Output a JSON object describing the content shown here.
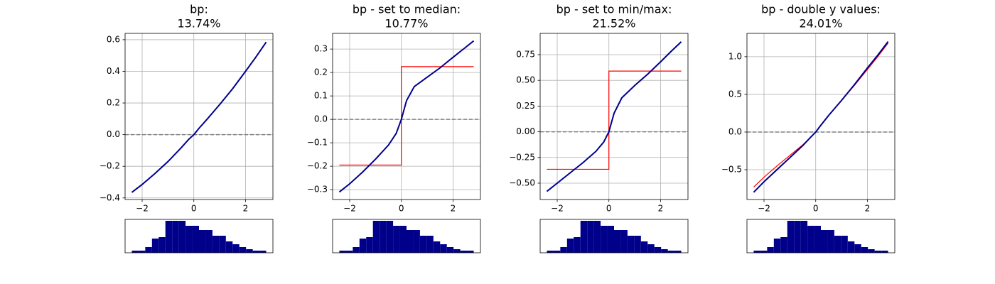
{
  "chart_data": [
    {
      "type": "line",
      "title": [
        "bp:",
        "13.74%"
      ],
      "x": [
        -2.4,
        -2,
        -1.5,
        -1,
        -0.5,
        -0.2,
        0,
        0,
        0.2,
        0.5,
        1,
        1.5,
        2,
        2.4,
        2.8
      ],
      "series": [
        {
          "color": "#00008b",
          "values": [
            -0.365,
            -0.315,
            -0.245,
            -0.17,
            -0.085,
            -0.03,
            0,
            0,
            0.04,
            0.095,
            0.19,
            0.29,
            0.4,
            0.49,
            0.585
          ]
        }
      ],
      "xlim": [
        -2.66,
        3.06
      ],
      "xticks": [
        {
          "value": -2,
          "label": "−2"
        },
        0,
        2
      ],
      "ylim": [
        -0.41,
        0.64
      ],
      "yticks": [
        {
          "value": -0.4,
          "label": "−0.4"
        },
        {
          "value": -0.2,
          "label": "−0.2"
        },
        {
          "value": 0,
          "label": "0.0"
        },
        0.2,
        0.4,
        0.6
      ],
      "grid": true,
      "hline": {
        "y": 0,
        "color": "gray",
        "style": "dashed"
      }
    },
    {
      "type": "line",
      "title": [
        "bp - set to median:",
        "10.77%"
      ],
      "x": [
        -2.4,
        -2,
        -1.5,
        -1,
        -0.5,
        -0.2,
        0,
        0,
        0.2,
        0.5,
        1,
        1.5,
        2,
        2.4,
        2.8
      ],
      "series": [
        {
          "color": "#00008b",
          "values": [
            -0.31,
            -0.275,
            -0.225,
            -0.17,
            -0.11,
            -0.06,
            0,
            0,
            0.08,
            0.14,
            0.18,
            0.22,
            0.265,
            0.3,
            0.335
          ]
        },
        {
          "color": "red",
          "values": [
            -0.195,
            -0.195,
            -0.195,
            -0.195,
            -0.195,
            -0.195,
            -0.195,
            0.225,
            0.225,
            0.225,
            0.225,
            0.225,
            0.225,
            0.225,
            0.225
          ]
        }
      ],
      "xlim": [
        -2.66,
        3.06
      ],
      "xticks": [
        {
          "value": -2,
          "label": "−2"
        },
        0,
        2
      ],
      "ylim": [
        -0.342,
        0.367
      ],
      "yticks": [
        {
          "value": -0.3,
          "label": "−0.3"
        },
        {
          "value": -0.2,
          "label": "−0.2"
        },
        {
          "value": -0.1,
          "label": "−0.1"
        },
        {
          "value": 0,
          "label": "0.0"
        },
        0.1,
        0.2,
        0.3
      ],
      "grid": true,
      "hline": {
        "y": 0,
        "color": "gray",
        "style": "dashed"
      }
    },
    {
      "type": "line",
      "title": [
        "bp - set to min/max:",
        "21.52%"
      ],
      "x": [
        -2.4,
        -2,
        -1.5,
        -1,
        -0.5,
        -0.2,
        0,
        0,
        0.2,
        0.5,
        1,
        1.5,
        2,
        2.4,
        2.8
      ],
      "series": [
        {
          "color": "#00008b",
          "values": [
            -0.58,
            -0.5,
            -0.4,
            -0.3,
            -0.19,
            -0.1,
            0,
            0,
            0.18,
            0.33,
            0.45,
            0.56,
            0.68,
            0.78,
            0.875
          ]
        },
        {
          "color": "red",
          "values": [
            -0.365,
            -0.365,
            -0.365,
            -0.365,
            -0.365,
            -0.365,
            -0.365,
            0.59,
            0.59,
            0.59,
            0.59,
            0.59,
            0.59,
            0.59,
            0.59
          ]
        }
      ],
      "xlim": [
        -2.66,
        3.06
      ],
      "xticks": [
        {
          "value": -2,
          "label": "−2"
        },
        0,
        2
      ],
      "ylim": [
        -0.659,
        0.957
      ],
      "yticks": [
        {
          "value": -0.5,
          "label": "−0.50"
        },
        {
          "value": -0.25,
          "label": "−0.25"
        },
        {
          "value": 0,
          "label": "0.00"
        },
        0.25,
        {
          "value": 0.5,
          "label": "0.50"
        },
        0.75
      ],
      "grid": true,
      "hline": {
        "y": 0,
        "color": "gray",
        "style": "dashed"
      }
    },
    {
      "type": "line",
      "title": [
        "bp - double y values:",
        "24.01%"
      ],
      "x": [
        -2.4,
        -2,
        -1.5,
        -1,
        -0.5,
        -0.2,
        0,
        0,
        0.2,
        0.5,
        1,
        1.5,
        2,
        2.4,
        2.8
      ],
      "series": [
        {
          "color": "#00008b",
          "values": [
            -0.8,
            -0.66,
            -0.5,
            -0.34,
            -0.18,
            -0.07,
            0,
            0,
            0.09,
            0.22,
            0.42,
            0.63,
            0.85,
            1.02,
            1.2
          ]
        },
        {
          "color": "red",
          "values": [
            -0.73,
            -0.6,
            -0.45,
            -0.31,
            -0.17,
            -0.07,
            0,
            0,
            0.09,
            0.22,
            0.42,
            0.62,
            0.83,
            1.0,
            1.18
          ]
        }
      ],
      "xlim": [
        -2.66,
        3.06
      ],
      "xticks": [
        {
          "value": -2,
          "label": "−2"
        },
        0,
        2
      ],
      "ylim": [
        -0.896,
        1.31
      ],
      "yticks": [
        {
          "value": -0.5,
          "label": "−0.5"
        },
        {
          "value": 0,
          "label": "0.0"
        },
        0.5,
        {
          "value": 1,
          "label": "1.0"
        }
      ],
      "grid": true,
      "hline": {
        "y": 0,
        "color": "gray",
        "style": "dashed"
      }
    },
    {
      "type": "histogram",
      "color": "#00008b",
      "xlim": [
        -2.66,
        3.06
      ],
      "ylim": [
        0,
        47
      ],
      "bins": [
        -2.4,
        -2.14,
        -1.88,
        -1.62,
        -1.36,
        -1.1,
        -0.84,
        -0.58,
        -0.32,
        -0.06,
        0.2,
        0.46,
        0.72,
        0.98,
        1.24,
        1.5,
        1.76,
        2.02,
        2.28,
        2.54,
        2.8
      ],
      "counts": [
        3,
        3,
        8,
        20,
        22,
        45,
        45,
        45,
        38,
        38,
        32,
        32,
        24,
        24,
        16,
        12,
        8,
        5,
        3,
        3
      ]
    },
    {
      "type": "histogram",
      "color": "#00008b",
      "xlim": [
        -2.66,
        3.06
      ],
      "ylim": [
        0,
        47
      ],
      "bins": [
        -2.4,
        -2.14,
        -1.88,
        -1.62,
        -1.36,
        -1.1,
        -0.84,
        -0.58,
        -0.32,
        -0.06,
        0.2,
        0.46,
        0.72,
        0.98,
        1.24,
        1.5,
        1.76,
        2.02,
        2.28,
        2.54,
        2.8
      ],
      "counts": [
        3,
        3,
        8,
        20,
        22,
        45,
        45,
        45,
        38,
        38,
        32,
        32,
        24,
        24,
        16,
        12,
        8,
        5,
        3,
        3
      ]
    },
    {
      "type": "histogram",
      "color": "#00008b",
      "xlim": [
        -2.66,
        3.06
      ],
      "ylim": [
        0,
        47
      ],
      "bins": [
        -2.4,
        -2.14,
        -1.88,
        -1.62,
        -1.36,
        -1.1,
        -0.84,
        -0.58,
        -0.32,
        -0.06,
        0.2,
        0.46,
        0.72,
        0.98,
        1.24,
        1.5,
        1.76,
        2.02,
        2.28,
        2.54,
        2.8
      ],
      "counts": [
        3,
        3,
        8,
        20,
        22,
        45,
        45,
        45,
        38,
        38,
        32,
        32,
        24,
        24,
        16,
        12,
        8,
        5,
        3,
        3
      ]
    },
    {
      "type": "histogram",
      "color": "#00008b",
      "xlim": [
        -2.66,
        3.06
      ],
      "ylim": [
        0,
        47
      ],
      "bins": [
        -2.4,
        -2.14,
        -1.88,
        -1.62,
        -1.36,
        -1.1,
        -0.84,
        -0.58,
        -0.32,
        -0.06,
        0.2,
        0.46,
        0.72,
        0.98,
        1.24,
        1.5,
        1.76,
        2.02,
        2.28,
        2.54,
        2.8
      ],
      "counts": [
        3,
        3,
        8,
        20,
        22,
        45,
        45,
        45,
        38,
        38,
        32,
        32,
        24,
        24,
        16,
        12,
        8,
        5,
        3,
        3
      ]
    }
  ]
}
